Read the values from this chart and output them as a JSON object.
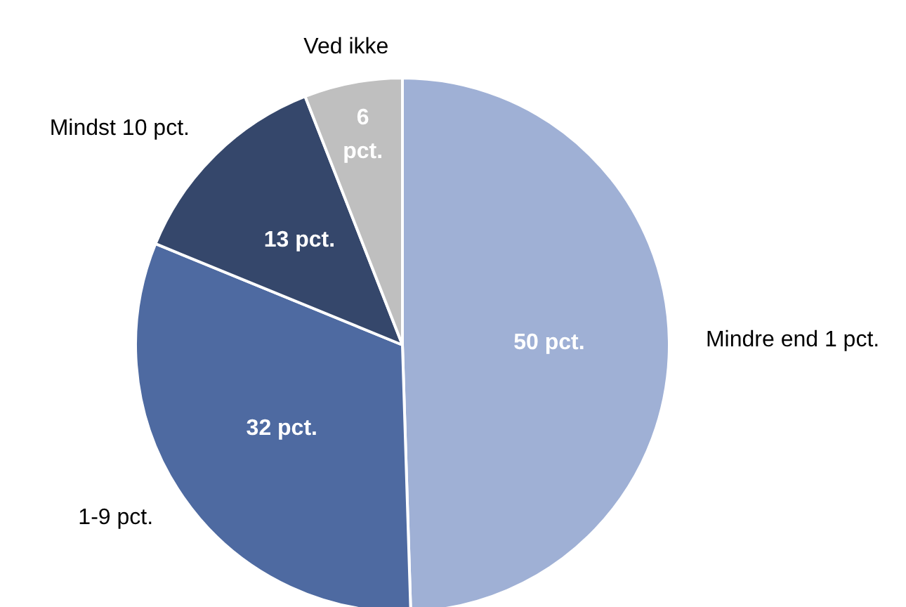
{
  "chart_data": {
    "type": "pie",
    "categories": [
      "Mindre end 1 pct.",
      "1-9 pct.",
      "Mindst 10 pct.",
      "Ved ikke"
    ],
    "values": [
      50,
      32,
      13,
      6
    ],
    "colors": [
      "#9fb0d5",
      "#4e6aa1",
      "#35476b",
      "#bfbfbf"
    ],
    "value_labels": [
      "50 pct.",
      "32 pct.",
      "13 pct.",
      "6 pct."
    ]
  }
}
